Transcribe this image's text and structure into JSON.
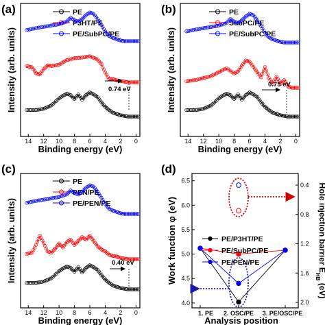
{
  "chart_data": [
    {
      "panel_label": "(a)",
      "type": "line",
      "xlabel": "Binding energy (eV)",
      "ylabel": "Intensity (arb. units)",
      "xlim": [
        15,
        -0.5
      ],
      "x_reversed": true,
      "x_ticks": [
        "14",
        "12",
        "10",
        "8",
        "6",
        "4",
        "2",
        "0"
      ],
      "legend_position": "top-center",
      "series": [
        {
          "name": "PE",
          "color": "#000000",
          "x": [
            14.2,
            13.0,
            12.0,
            11.0,
            10.0,
            9.5,
            9.0,
            8.5,
            8.0,
            7.5,
            7.0,
            6.5,
            6.0,
            5.5,
            5.0,
            4.5,
            4.0,
            3.5,
            3.0,
            2.5,
            2.0,
            1.5,
            1.0,
            0.5,
            0.0,
            -0.3
          ],
          "y": [
            0.1,
            0.1,
            0.12,
            0.17,
            0.28,
            0.32,
            0.35,
            0.33,
            0.27,
            0.34,
            0.26,
            0.33,
            0.37,
            0.34,
            0.3,
            0.22,
            0.15,
            0.1,
            0.06,
            0.04,
            0.02,
            0.01,
            0.0,
            0.0,
            0.0,
            0.0
          ]
        },
        {
          "name": "P3HT/PE",
          "color": "#ff0000",
          "x": [
            14.2,
            13.5,
            13.0,
            12.5,
            12.0,
            11.5,
            11.0,
            10.0,
            9.0,
            8.0,
            7.0,
            6.0,
            5.0,
            4.5,
            4.0,
            3.5,
            3.0,
            2.5,
            2.0,
            1.5,
            1.0,
            0.5,
            0.0,
            -0.3
          ],
          "y": [
            0.25,
            0.23,
            0.14,
            0.12,
            0.2,
            0.26,
            0.25,
            0.27,
            0.34,
            0.37,
            0.38,
            0.4,
            0.35,
            0.28,
            0.15,
            0.05,
            0.05,
            0.03,
            0.02,
            0.01,
            0.0,
            0.0,
            0.0,
            0.0
          ],
          "annotation": "0.74 eV"
        },
        {
          "name": "PE/SubPC/PE",
          "color": "#0000ff",
          "x": [
            14.2,
            13.0,
            12.0,
            11.0,
            10.0,
            9.0,
            8.5,
            8.0,
            7.5,
            7.0,
            6.5,
            6.0,
            5.5,
            5.0,
            4.5,
            4.0,
            3.5,
            3.0,
            2.5,
            2.0,
            1.5,
            1.0,
            0.5,
            0.0,
            -0.3
          ],
          "y": [
            0.17,
            0.2,
            0.22,
            0.24,
            0.26,
            0.3,
            0.36,
            0.32,
            0.3,
            0.34,
            0.4,
            0.44,
            0.42,
            0.34,
            0.25,
            0.15,
            0.08,
            0.05,
            0.03,
            0.01,
            0.0,
            0.0,
            0.0,
            0.0,
            0.0
          ]
        }
      ]
    },
    {
      "panel_label": "(b)",
      "type": "line",
      "xlabel": "Binding energy (eV)",
      "ylabel": "Intensity (arb. units)",
      "xlim": [
        15,
        -0.5
      ],
      "x_reversed": true,
      "x_ticks": [
        "14",
        "12",
        "10",
        "8",
        "6",
        "4",
        "2",
        "0"
      ],
      "legend_position": "top-center",
      "series": [
        {
          "name": "PE",
          "color": "#000000",
          "x": [
            14.2,
            13.0,
            12.0,
            11.0,
            10.0,
            9.5,
            9.0,
            8.5,
            8.0,
            7.5,
            7.0,
            6.5,
            6.0,
            5.5,
            5.0,
            4.5,
            4.0,
            3.5,
            3.0,
            2.5,
            2.0,
            1.5,
            1.0,
            0.5,
            0.0,
            -0.3
          ],
          "y": [
            0.1,
            0.1,
            0.12,
            0.17,
            0.28,
            0.32,
            0.35,
            0.33,
            0.27,
            0.34,
            0.26,
            0.33,
            0.37,
            0.34,
            0.3,
            0.22,
            0.15,
            0.1,
            0.06,
            0.04,
            0.02,
            0.01,
            0.0,
            0.0,
            0.0,
            0.0
          ]
        },
        {
          "name": "SubPC/PE",
          "color": "#ff0000",
          "x": [
            14.2,
            13.0,
            12.0,
            11.0,
            10.0,
            9.0,
            8.0,
            7.5,
            7.0,
            6.5,
            6.0,
            5.5,
            5.0,
            4.5,
            4.0,
            3.5,
            3.0,
            2.5,
            2.0,
            1.5,
            1.0,
            0.5,
            0.0,
            -0.3
          ],
          "y": [
            0.1,
            0.12,
            0.15,
            0.18,
            0.24,
            0.3,
            0.22,
            0.25,
            0.34,
            0.42,
            0.4,
            0.32,
            0.24,
            0.16,
            0.32,
            0.15,
            0.06,
            0.17,
            0.06,
            0.12,
            0.02,
            0.0,
            0.0,
            0.0
          ],
          "annotation": "0.75 eV"
        },
        {
          "name": "PE/SubPC/PE",
          "color": "#0000ff",
          "x": [
            14.2,
            13.0,
            12.0,
            11.0,
            10.0,
            9.0,
            8.5,
            8.0,
            7.5,
            7.0,
            6.5,
            6.0,
            5.5,
            5.0,
            4.5,
            4.0,
            3.5,
            3.0,
            2.5,
            2.0,
            1.5,
            1.0,
            0.5,
            0.0,
            -0.3
          ],
          "y": [
            0.17,
            0.2,
            0.22,
            0.24,
            0.26,
            0.3,
            0.36,
            0.32,
            0.3,
            0.34,
            0.4,
            0.44,
            0.42,
            0.34,
            0.25,
            0.15,
            0.08,
            0.05,
            0.03,
            0.01,
            0.0,
            0.0,
            0.0,
            0.0,
            0.0
          ]
        }
      ]
    },
    {
      "panel_label": "(c)",
      "type": "line",
      "xlabel": "Binding energy (eV)",
      "ylabel": "Intensity (arb. units)",
      "xlim": [
        15,
        -0.5
      ],
      "x_reversed": true,
      "x_ticks": [
        "14",
        "12",
        "10",
        "8",
        "6",
        "4",
        "2",
        "0"
      ],
      "legend_position": "top-center",
      "series": [
        {
          "name": "PE",
          "color": "#000000",
          "x": [
            14.2,
            13.0,
            12.0,
            11.0,
            10.0,
            9.5,
            9.0,
            8.5,
            8.0,
            7.5,
            7.0,
            6.5,
            6.0,
            5.5,
            5.0,
            4.5,
            4.0,
            3.5,
            3.0,
            2.5,
            2.0,
            1.5,
            1.0,
            0.5,
            0.0,
            -0.3
          ],
          "y": [
            0.1,
            0.1,
            0.12,
            0.17,
            0.28,
            0.32,
            0.35,
            0.33,
            0.27,
            0.34,
            0.26,
            0.33,
            0.37,
            0.34,
            0.3,
            0.22,
            0.15,
            0.1,
            0.06,
            0.04,
            0.02,
            0.01,
            0.0,
            0.0,
            0.0,
            0.0
          ]
        },
        {
          "name": "PEN/PE",
          "color": "#ff0000",
          "x": [
            14.2,
            13.5,
            13.0,
            12.5,
            12.0,
            11.5,
            11.0,
            10.5,
            10.0,
            9.5,
            9.0,
            8.5,
            8.0,
            7.5,
            7.0,
            6.5,
            6.0,
            5.5,
            5.0,
            4.5,
            4.0,
            3.5,
            3.0,
            2.5,
            2.0,
            1.5,
            1.0,
            0.5,
            0.0,
            -0.3
          ],
          "y": [
            0.08,
            0.1,
            0.22,
            0.36,
            0.25,
            0.12,
            0.1,
            0.16,
            0.24,
            0.18,
            0.26,
            0.3,
            0.22,
            0.28,
            0.34,
            0.3,
            0.36,
            0.28,
            0.2,
            0.15,
            0.12,
            0.07,
            0.05,
            0.04,
            0.02,
            0.01,
            0.0,
            0.0,
            0.0,
            0.0
          ],
          "annotation": "0.40 eV"
        },
        {
          "name": "PE/PEN/PE",
          "color": "#0000ff",
          "x": [
            14.2,
            13.0,
            12.0,
            11.0,
            10.0,
            9.0,
            8.5,
            8.0,
            7.5,
            7.0,
            6.5,
            6.0,
            5.5,
            5.0,
            4.5,
            4.0,
            3.5,
            3.0,
            2.5,
            2.0,
            1.5,
            1.0,
            0.5,
            0.0,
            -0.3
          ],
          "y": [
            0.17,
            0.2,
            0.22,
            0.24,
            0.26,
            0.3,
            0.36,
            0.32,
            0.3,
            0.34,
            0.4,
            0.44,
            0.42,
            0.34,
            0.25,
            0.15,
            0.08,
            0.05,
            0.03,
            0.01,
            0.0,
            0.0,
            0.0,
            0.0,
            0.0
          ]
        }
      ]
    },
    {
      "panel_label": "(d)",
      "type": "line",
      "xlabel": "Analysis position",
      "ylabel": "Work function φ (eV)",
      "ylabel_right": "Hole injection barrier E",
      "ylabel_right_sub": "HB",
      "ylabel_right_suffix": " (eV)",
      "ylim": [
        3.9,
        6.65
      ],
      "y_ticks": [
        "4.0",
        "4.5",
        "5.0",
        "5.5",
        "6.0",
        "6.5"
      ],
      "y2_ticks": [
        "0.4",
        "0.8",
        "1.2",
        "1.6",
        "2.0"
      ],
      "categories": [
        "1. PE",
        "2. OSC/PE",
        "3. PE/OSC/PE"
      ],
      "legend_position": "center-left",
      "series": [
        {
          "name": "PE/P3HT/PE",
          "color": "#000000",
          "values": [
            5.12,
            4.02,
            5.08
          ]
        },
        {
          "name": "PE/SubPC/PE",
          "color": "#ff0000",
          "values": [
            5.12,
            5.0,
            5.08
          ]
        },
        {
          "name": "PE/PEN/PE",
          "color": "#0000ff",
          "values": [
            5.12,
            4.4,
            5.08
          ]
        }
      ],
      "hole_injection_barrier_points": [
        {
          "value": 0.4,
          "color": "#0000ff"
        },
        {
          "value": 0.75,
          "color": "#ff0000"
        }
      ]
    }
  ]
}
